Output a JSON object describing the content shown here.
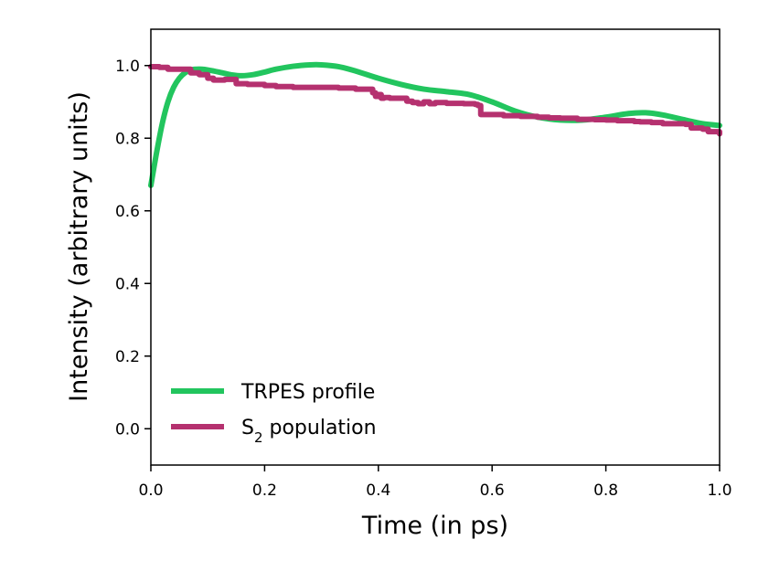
{
  "chart_data": {
    "type": "line",
    "title": "",
    "xlabel": "Time (in ps)",
    "ylabel": "Intensity (arbitrary units)",
    "xlim": [
      0.0,
      1.0
    ],
    "ylim": [
      -0.1,
      1.1
    ],
    "xticks": [
      0.0,
      0.2,
      0.4,
      0.6,
      0.8,
      1.0
    ],
    "xtick_labels": [
      "0.0",
      "0.2",
      "0.4",
      "0.6",
      "0.8",
      "1.0"
    ],
    "yticks": [
      0.0,
      0.2,
      0.4,
      0.6,
      0.8,
      1.0
    ],
    "ytick_labels": [
      "0.0",
      "0.2",
      "0.4",
      "0.6",
      "0.8",
      "1.0"
    ],
    "grid": false,
    "legend_position": "lower-left",
    "series": [
      {
        "name": "TRPES profile",
        "legend_label": "TRPES profile",
        "color": "#22c55e",
        "style": "smooth",
        "x": [
          0.0,
          0.01,
          0.02,
          0.03,
          0.04,
          0.05,
          0.06,
          0.07,
          0.08,
          0.09,
          0.1,
          0.12,
          0.14,
          0.16,
          0.18,
          0.2,
          0.22,
          0.25,
          0.28,
          0.3,
          0.33,
          0.36,
          0.4,
          0.44,
          0.48,
          0.52,
          0.56,
          0.6,
          0.64,
          0.68,
          0.72,
          0.76,
          0.8,
          0.84,
          0.87,
          0.9,
          0.94,
          0.97,
          1.0
        ],
        "y": [
          0.67,
          0.76,
          0.84,
          0.9,
          0.94,
          0.965,
          0.98,
          0.988,
          0.99,
          0.99,
          0.988,
          0.982,
          0.975,
          0.972,
          0.975,
          0.982,
          0.99,
          0.998,
          1.002,
          1.002,
          0.997,
          0.985,
          0.965,
          0.948,
          0.935,
          0.928,
          0.92,
          0.9,
          0.875,
          0.858,
          0.85,
          0.85,
          0.858,
          0.868,
          0.87,
          0.864,
          0.85,
          0.84,
          0.835
        ]
      },
      {
        "name": "S₂ population",
        "legend_label_base": "S",
        "legend_label_sub": "2",
        "legend_label_rest": " population",
        "color": "#b5316f",
        "style": "step",
        "x": [
          0.0,
          0.015,
          0.03,
          0.045,
          0.07,
          0.085,
          0.1,
          0.11,
          0.13,
          0.15,
          0.17,
          0.2,
          0.22,
          0.25,
          0.28,
          0.3,
          0.33,
          0.36,
          0.38,
          0.39,
          0.395,
          0.4,
          0.405,
          0.41,
          0.42,
          0.45,
          0.46,
          0.47,
          0.48,
          0.49,
          0.5,
          0.52,
          0.55,
          0.57,
          0.575,
          0.58,
          0.6,
          0.62,
          0.65,
          0.68,
          0.7,
          0.72,
          0.75,
          0.78,
          0.8,
          0.82,
          0.84,
          0.85,
          0.86,
          0.88,
          0.9,
          0.92,
          0.94,
          0.95,
          0.97,
          0.98,
          1.0
        ],
        "y": [
          0.997,
          0.995,
          0.99,
          0.99,
          0.98,
          0.975,
          0.965,
          0.96,
          0.962,
          0.95,
          0.948,
          0.945,
          0.942,
          0.94,
          0.94,
          0.94,
          0.938,
          0.935,
          0.935,
          0.925,
          0.915,
          0.92,
          0.91,
          0.912,
          0.91,
          0.902,
          0.898,
          0.895,
          0.9,
          0.895,
          0.898,
          0.896,
          0.895,
          0.893,
          0.89,
          0.865,
          0.865,
          0.862,
          0.86,
          0.858,
          0.856,
          0.855,
          0.852,
          0.851,
          0.85,
          0.848,
          0.848,
          0.846,
          0.845,
          0.843,
          0.84,
          0.84,
          0.838,
          0.828,
          0.825,
          0.818,
          0.812
        ]
      }
    ]
  }
}
